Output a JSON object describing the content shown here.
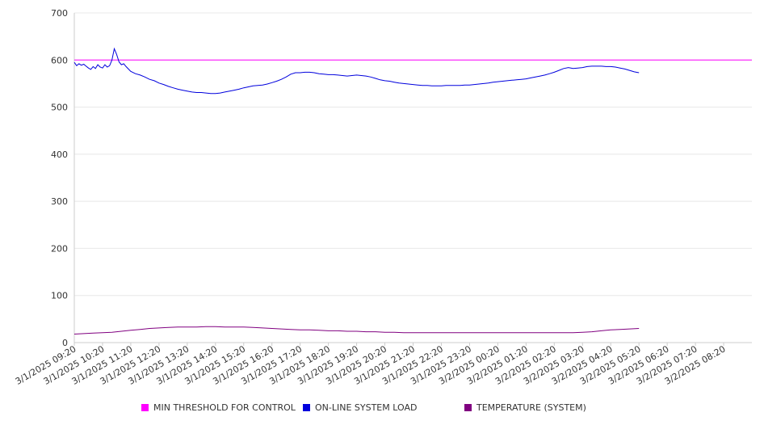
{
  "chart_data": {
    "type": "line",
    "xlim": [
      0,
      1440
    ],
    "ylim": [
      0,
      700
    ],
    "yticks": [
      "0",
      "100",
      "200",
      "300",
      "400",
      "500",
      "600",
      "700"
    ],
    "x_tick_labels": [
      "3/1/2025 09:20",
      "3/1/2025 10:20",
      "3/1/2025 11:20",
      "3/1/2025 12:20",
      "3/1/2025 13:20",
      "3/1/2025 14:20",
      "3/1/2025 15:20",
      "3/1/2025 16:20",
      "3/1/2025 17:20",
      "3/1/2025 18:20",
      "3/1/2025 19:20",
      "3/1/2025 20:20",
      "3/1/2025 21:20",
      "3/1/2025 22:20",
      "3/1/2025 23:20",
      "3/2/2025 00:20",
      "3/2/2025 01:20",
      "3/2/2025 02:20",
      "3/2/2025 03:20",
      "3/2/2025 04:20",
      "3/2/2025 05:20",
      "3/2/2025 06:20",
      "3/2/2025 07:20",
      "3/2/2025 08:20"
    ],
    "grid": true,
    "legend_position": "bottom",
    "series": [
      {
        "name": "MIN THRESHOLD FOR CONTROL",
        "color": "#ff00ff",
        "points": [
          [
            0,
            600
          ],
          [
            1440,
            600
          ]
        ]
      },
      {
        "name": "ON-LINE SYSTEM LOAD",
        "color": "#0000dd",
        "points": [
          [
            0,
            595
          ],
          [
            5,
            588
          ],
          [
            10,
            592
          ],
          [
            15,
            589
          ],
          [
            20,
            591
          ],
          [
            25,
            587
          ],
          [
            30,
            583
          ],
          [
            35,
            580
          ],
          [
            40,
            586
          ],
          [
            45,
            582
          ],
          [
            50,
            590
          ],
          [
            55,
            585
          ],
          [
            60,
            583
          ],
          [
            65,
            590
          ],
          [
            70,
            585
          ],
          [
            75,
            588
          ],
          [
            80,
            600
          ],
          [
            85,
            624
          ],
          [
            90,
            612
          ],
          [
            95,
            596
          ],
          [
            100,
            590
          ],
          [
            105,
            592
          ],
          [
            110,
            586
          ],
          [
            115,
            581
          ],
          [
            120,
            576
          ],
          [
            130,
            571
          ],
          [
            140,
            568
          ],
          [
            150,
            564
          ],
          [
            160,
            559
          ],
          [
            170,
            556
          ],
          [
            180,
            551
          ],
          [
            190,
            548
          ],
          [
            200,
            544
          ],
          [
            210,
            541
          ],
          [
            220,
            538
          ],
          [
            230,
            536
          ],
          [
            240,
            534
          ],
          [
            250,
            532
          ],
          [
            260,
            531
          ],
          [
            270,
            531
          ],
          [
            280,
            530
          ],
          [
            290,
            529
          ],
          [
            300,
            529
          ],
          [
            310,
            530
          ],
          [
            320,
            532
          ],
          [
            330,
            534
          ],
          [
            340,
            536
          ],
          [
            350,
            538
          ],
          [
            360,
            541
          ],
          [
            370,
            543
          ],
          [
            380,
            545
          ],
          [
            390,
            546
          ],
          [
            400,
            547
          ],
          [
            410,
            549
          ],
          [
            420,
            552
          ],
          [
            430,
            555
          ],
          [
            440,
            559
          ],
          [
            450,
            564
          ],
          [
            460,
            570
          ],
          [
            470,
            573
          ],
          [
            480,
            573
          ],
          [
            490,
            574
          ],
          [
            500,
            574
          ],
          [
            510,
            573
          ],
          [
            520,
            571
          ],
          [
            530,
            570
          ],
          [
            540,
            569
          ],
          [
            550,
            569
          ],
          [
            560,
            568
          ],
          [
            570,
            567
          ],
          [
            580,
            566
          ],
          [
            590,
            567
          ],
          [
            600,
            568
          ],
          [
            610,
            567
          ],
          [
            620,
            566
          ],
          [
            630,
            564
          ],
          [
            640,
            561
          ],
          [
            650,
            558
          ],
          [
            660,
            556
          ],
          [
            670,
            555
          ],
          [
            680,
            553
          ],
          [
            690,
            551
          ],
          [
            700,
            550
          ],
          [
            710,
            549
          ],
          [
            720,
            548
          ],
          [
            730,
            547
          ],
          [
            740,
            546
          ],
          [
            750,
            546
          ],
          [
            760,
            545
          ],
          [
            770,
            545
          ],
          [
            780,
            545
          ],
          [
            790,
            546
          ],
          [
            800,
            546
          ],
          [
            810,
            546
          ],
          [
            820,
            546
          ],
          [
            830,
            547
          ],
          [
            840,
            547
          ],
          [
            850,
            548
          ],
          [
            860,
            549
          ],
          [
            870,
            550
          ],
          [
            880,
            551
          ],
          [
            890,
            553
          ],
          [
            900,
            554
          ],
          [
            910,
            555
          ],
          [
            920,
            556
          ],
          [
            930,
            557
          ],
          [
            940,
            558
          ],
          [
            950,
            559
          ],
          [
            960,
            560
          ],
          [
            970,
            562
          ],
          [
            980,
            564
          ],
          [
            990,
            566
          ],
          [
            1000,
            568
          ],
          [
            1010,
            571
          ],
          [
            1020,
            574
          ],
          [
            1030,
            578
          ],
          [
            1040,
            582
          ],
          [
            1050,
            584
          ],
          [
            1060,
            582
          ],
          [
            1070,
            583
          ],
          [
            1080,
            584
          ],
          [
            1090,
            586
          ],
          [
            1100,
            587
          ],
          [
            1110,
            587
          ],
          [
            1120,
            587
          ],
          [
            1130,
            586
          ],
          [
            1140,
            586
          ],
          [
            1150,
            585
          ],
          [
            1160,
            583
          ],
          [
            1170,
            581
          ],
          [
            1180,
            578
          ],
          [
            1190,
            575
          ],
          [
            1200,
            573
          ]
        ]
      },
      {
        "name": "TEMPERATURE (SYSTEM)",
        "color": "#800080",
        "points": [
          [
            0,
            18
          ],
          [
            20,
            19
          ],
          [
            40,
            20
          ],
          [
            60,
            21
          ],
          [
            80,
            22
          ],
          [
            100,
            24
          ],
          [
            120,
            26
          ],
          [
            140,
            28
          ],
          [
            160,
            30
          ],
          [
            180,
            31
          ],
          [
            200,
            32
          ],
          [
            220,
            33
          ],
          [
            240,
            33
          ],
          [
            260,
            33
          ],
          [
            280,
            34
          ],
          [
            300,
            34
          ],
          [
            320,
            33
          ],
          [
            340,
            33
          ],
          [
            360,
            33
          ],
          [
            380,
            32
          ],
          [
            400,
            31
          ],
          [
            420,
            30
          ],
          [
            440,
            29
          ],
          [
            460,
            28
          ],
          [
            480,
            27
          ],
          [
            500,
            27
          ],
          [
            520,
            26
          ],
          [
            540,
            25
          ],
          [
            560,
            25
          ],
          [
            580,
            24
          ],
          [
            600,
            24
          ],
          [
            620,
            23
          ],
          [
            640,
            23
          ],
          [
            660,
            22
          ],
          [
            680,
            22
          ],
          [
            700,
            21
          ],
          [
            720,
            21
          ],
          [
            740,
            21
          ],
          [
            760,
            21
          ],
          [
            780,
            21
          ],
          [
            800,
            21
          ],
          [
            820,
            21
          ],
          [
            840,
            21
          ],
          [
            860,
            21
          ],
          [
            880,
            21
          ],
          [
            900,
            21
          ],
          [
            920,
            21
          ],
          [
            940,
            21
          ],
          [
            960,
            21
          ],
          [
            980,
            21
          ],
          [
            1000,
            21
          ],
          [
            1020,
            21
          ],
          [
            1040,
            21
          ],
          [
            1060,
            21
          ],
          [
            1080,
            22
          ],
          [
            1100,
            23
          ],
          [
            1120,
            25
          ],
          [
            1140,
            27
          ],
          [
            1160,
            28
          ],
          [
            1180,
            29
          ],
          [
            1200,
            30
          ]
        ]
      }
    ]
  }
}
